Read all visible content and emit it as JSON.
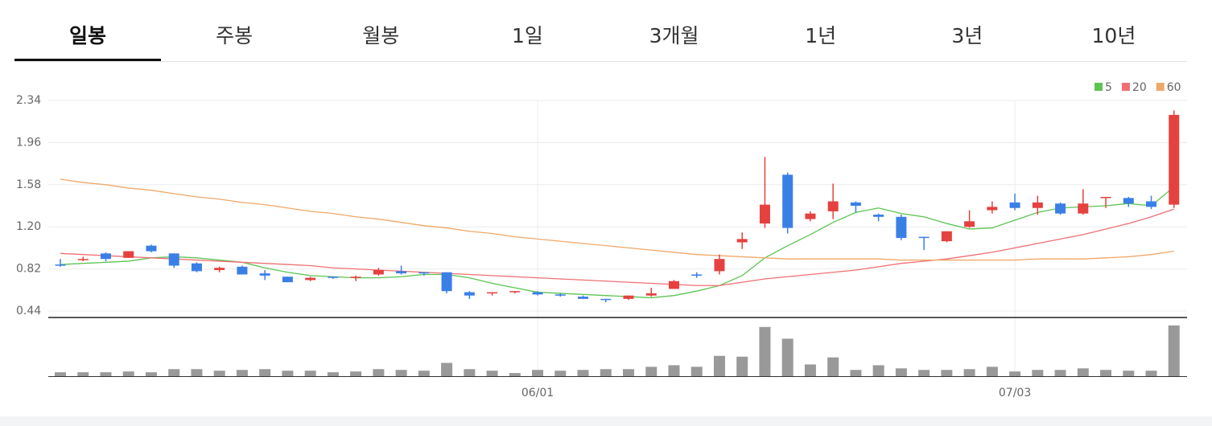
{
  "tabs": [
    "일봉",
    "주봉",
    "월봉",
    "1일",
    "3개월",
    "1년",
    "3년",
    "10년"
  ],
  "chart_data": {
    "type": "candlestick",
    "categories": [
      null,
      null,
      null,
      null,
      null,
      null,
      null,
      null,
      null,
      null,
      null,
      null,
      null,
      null,
      null,
      null,
      null,
      null,
      null,
      null,
      null,
      "06/01",
      null,
      null,
      null,
      null,
      null,
      null,
      null,
      null,
      null,
      null,
      null,
      null,
      null,
      null,
      null,
      null,
      null,
      null,
      null,
      null,
      "07/03",
      null,
      null,
      null,
      null,
      null,
      null,
      null
    ],
    "open": [
      0.86,
      0.9,
      0.96,
      0.92,
      1.03,
      0.96,
      0.87,
      0.81,
      0.84,
      0.78,
      0.75,
      0.72,
      0.75,
      0.74,
      0.77,
      0.8,
      0.79,
      0.79,
      0.61,
      0.6,
      0.61,
      0.61,
      0.59,
      0.57,
      0.55,
      0.55,
      0.58,
      0.64,
      0.77,
      0.8,
      1.06,
      1.23,
      1.67,
      1.27,
      1.34,
      1.42,
      1.31,
      1.29,
      1.11,
      1.07,
      1.2,
      1.35,
      1.42,
      1.37,
      1.41,
      1.32,
      1.46,
      1.46,
      1.43,
      1.4
    ],
    "high": [
      0.91,
      0.93,
      0.97,
      0.98,
      1.04,
      0.96,
      0.88,
      0.84,
      0.85,
      0.81,
      0.75,
      0.75,
      0.75,
      0.76,
      0.83,
      0.85,
      0.79,
      0.79,
      0.62,
      0.61,
      0.62,
      0.62,
      0.6,
      0.58,
      0.55,
      0.58,
      0.65,
      0.72,
      0.79,
      0.95,
      1.15,
      1.83,
      1.69,
      1.34,
      1.59,
      1.43,
      1.32,
      1.31,
      1.11,
      1.16,
      1.35,
      1.43,
      1.5,
      1.48,
      1.42,
      1.54,
      1.47,
      1.47,
      1.48,
      2.25
    ],
    "low": [
      0.84,
      0.89,
      0.89,
      0.92,
      0.97,
      0.83,
      0.79,
      0.79,
      0.77,
      0.72,
      0.7,
      0.71,
      0.73,
      0.71,
      0.76,
      0.77,
      0.76,
      0.6,
      0.55,
      0.58,
      0.6,
      0.58,
      0.57,
      0.55,
      0.52,
      0.54,
      0.57,
      0.64,
      0.74,
      0.77,
      1.0,
      1.19,
      1.14,
      1.25,
      1.27,
      1.33,
      1.25,
      1.08,
      0.99,
      1.06,
      1.19,
      1.32,
      1.35,
      1.31,
      1.31,
      1.31,
      1.37,
      1.38,
      1.36,
      1.37
    ],
    "close": [
      0.85,
      0.91,
      0.91,
      0.98,
      0.98,
      0.85,
      0.8,
      0.83,
      0.77,
      0.76,
      0.7,
      0.74,
      0.74,
      0.75,
      0.81,
      0.78,
      0.78,
      0.62,
      0.58,
      0.61,
      0.62,
      0.59,
      0.58,
      0.55,
      0.54,
      0.58,
      0.6,
      0.71,
      0.76,
      0.91,
      1.09,
      1.4,
      1.19,
      1.32,
      1.43,
      1.39,
      1.29,
      1.1,
      1.1,
      1.16,
      1.25,
      1.38,
      1.37,
      1.42,
      1.32,
      1.41,
      1.47,
      1.41,
      1.38,
      2.21
    ],
    "up_color": "#e5413f",
    "down_color": "#3a7fe6",
    "series": [
      {
        "name": "5",
        "color": "#5cc453",
        "values": [
          0.86,
          0.87,
          0.88,
          0.89,
          0.92,
          0.93,
          0.92,
          0.9,
          0.88,
          0.83,
          0.79,
          0.76,
          0.75,
          0.74,
          0.74,
          0.75,
          0.77,
          0.77,
          0.74,
          0.69,
          0.65,
          0.61,
          0.6,
          0.59,
          0.58,
          0.57,
          0.56,
          0.58,
          0.62,
          0.67,
          0.76,
          0.92,
          1.03,
          1.13,
          1.24,
          1.33,
          1.37,
          1.32,
          1.29,
          1.23,
          1.18,
          1.19,
          1.26,
          1.33,
          1.37,
          1.38,
          1.39,
          1.41,
          1.39,
          1.56
        ]
      },
      {
        "name": "20",
        "color": "#ef6f73",
        "values": [
          0.96,
          0.95,
          0.94,
          0.93,
          0.92,
          0.91,
          0.9,
          0.89,
          0.88,
          0.87,
          0.86,
          0.85,
          0.83,
          0.82,
          0.81,
          0.8,
          0.79,
          0.78,
          0.77,
          0.76,
          0.75,
          0.74,
          0.73,
          0.72,
          0.71,
          0.7,
          0.69,
          0.68,
          0.67,
          0.67,
          0.7,
          0.73,
          0.75,
          0.77,
          0.79,
          0.81,
          0.84,
          0.87,
          0.89,
          0.91,
          0.94,
          0.97,
          1.01,
          1.05,
          1.09,
          1.13,
          1.18,
          1.23,
          1.29,
          1.36
        ]
      },
      {
        "name": "60",
        "color": "#f0a868",
        "values": [
          1.63,
          1.6,
          1.58,
          1.55,
          1.53,
          1.5,
          1.47,
          1.45,
          1.42,
          1.4,
          1.37,
          1.34,
          1.32,
          1.29,
          1.27,
          1.24,
          1.21,
          1.19,
          1.16,
          1.14,
          1.11,
          1.09,
          1.07,
          1.05,
          1.03,
          1.01,
          0.99,
          0.97,
          0.95,
          0.94,
          0.93,
          0.92,
          0.91,
          0.91,
          0.91,
          0.91,
          0.91,
          0.9,
          0.9,
          0.9,
          0.9,
          0.9,
          0.9,
          0.91,
          0.91,
          0.91,
          0.92,
          0.93,
          0.95,
          0.98
        ]
      }
    ],
    "volume": {
      "color": "#999999",
      "ylim": [
        0,
        70
      ],
      "values": [
        5,
        5,
        5,
        6,
        5,
        9,
        9,
        7,
        8,
        9,
        7,
        7,
        5,
        6,
        9,
        8,
        7,
        17,
        9,
        7,
        4,
        8,
        7,
        8,
        9,
        9,
        12,
        14,
        12,
        26,
        25,
        63,
        48,
        15,
        24,
        8,
        14,
        10,
        8,
        8,
        9,
        12,
        6,
        8,
        8,
        10,
        8,
        7,
        7,
        65
      ]
    },
    "ylim": [
      0.44,
      2.34
    ],
    "yticks": [
      2.34,
      1.96,
      1.58,
      {
        "value": 1.2,
        "label": "1.20"
      },
      0.82,
      0.44
    ],
    "grid": true,
    "legend": "top-right"
  }
}
